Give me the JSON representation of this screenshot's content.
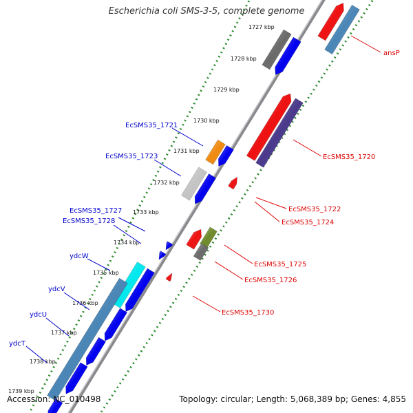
{
  "title": "Escherichia coli SMS-3-5, complete genome",
  "footer": {
    "accession": "Accession: NC_010498",
    "topology": "Topology: circular; Length: 5,068,389 bp; Genes: 4,855"
  },
  "ticks": [
    "1727 kbp",
    "1728 kbp",
    "1729 kbp",
    "1730 kbp",
    "1731 kbp",
    "1732 kbp",
    "1733 kbp",
    "1734 kbp",
    "1735 kbp",
    "1736 kbp",
    "1737 kbp",
    "1738 kbp",
    "1739 kbp"
  ],
  "genes_left": [
    "EcSMS35_1721",
    "EcSMS35_1723",
    "EcSMS35_1727",
    "EcSMS35_1728",
    "ydcW",
    "ydcV",
    "ydcU",
    "ydcT"
  ],
  "genes_right": [
    "ansP",
    "EcSMS35_1720",
    "EcSMS35_1722",
    "EcSMS35_1724",
    "EcSMS35_1725",
    "EcSMS35_1726",
    "EcSMS35_1730"
  ],
  "colors": {
    "forward_label": "#0000cc",
    "reverse_label": "#dd0000",
    "backbone": "#8a8a8e",
    "tick_ring": "#2e8b2e",
    "cds_blue": "#0000ee",
    "cds_red": "#ee1111",
    "orf_grey": "#6a6a6a",
    "orf_steelblue": "#4a86b6",
    "orf_purple": "#4b3a8c",
    "orf_cyan": "#00e8ee",
    "orf_orange": "#f08a10",
    "orf_olive": "#6e8a2a",
    "orf_lightgrey": "#c4c4c4"
  }
}
